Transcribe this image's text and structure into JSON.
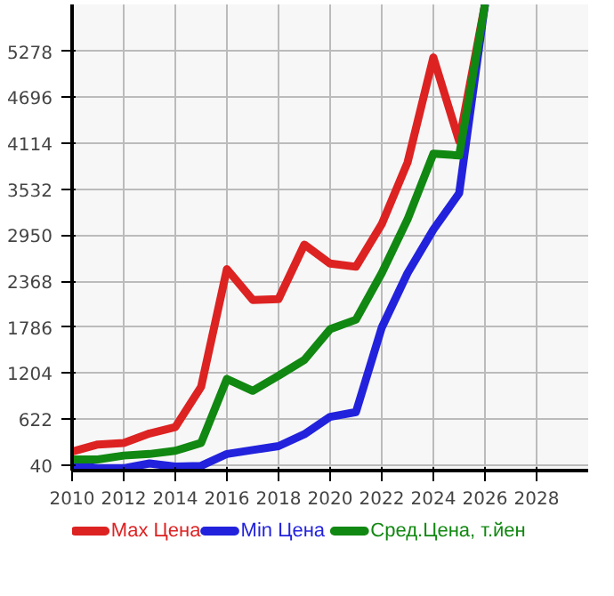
{
  "chart_data": {
    "type": "line",
    "x": [
      2010,
      2011,
      2012,
      2013,
      2014,
      2015,
      2016,
      2017,
      2018,
      2019,
      2020,
      2021,
      2022,
      2023,
      2024,
      2025,
      2026
    ],
    "series": [
      {
        "name": "Max Цена",
        "color": "#dd2222",
        "values": [
          210,
          300,
          320,
          440,
          520,
          1030,
          2520,
          2130,
          2140,
          2830,
          2590,
          2550,
          3090,
          3870,
          5200,
          4140,
          5870
        ]
      },
      {
        "name": "Min Цена",
        "color": "#2222dd",
        "values": [
          40,
          0,
          0,
          60,
          20,
          30,
          180,
          230,
          280,
          430,
          650,
          710,
          1780,
          2470,
          3020,
          3480,
          5870
        ]
      },
      {
        "name": "Сред.Цена, т.йен",
        "color": "#118811",
        "values": [
          110,
          110,
          160,
          180,
          220,
          320,
          1130,
          980,
          1170,
          1370,
          1760,
          1880,
          2470,
          3150,
          3980,
          3960,
          5870
        ]
      }
    ],
    "xlim": [
      2010,
      2030
    ],
    "xticks": [
      2010,
      2012,
      2014,
      2016,
      2018,
      2020,
      2022,
      2024,
      2026,
      2028
    ],
    "ylim": [
      -30,
      5870
    ],
    "yticks": [
      40,
      622,
      1204,
      1786,
      2368,
      2950,
      3532,
      4114,
      4696,
      5278
    ],
    "grid": true,
    "legend": "bottom",
    "marker": "none",
    "line_style": "solid"
  }
}
